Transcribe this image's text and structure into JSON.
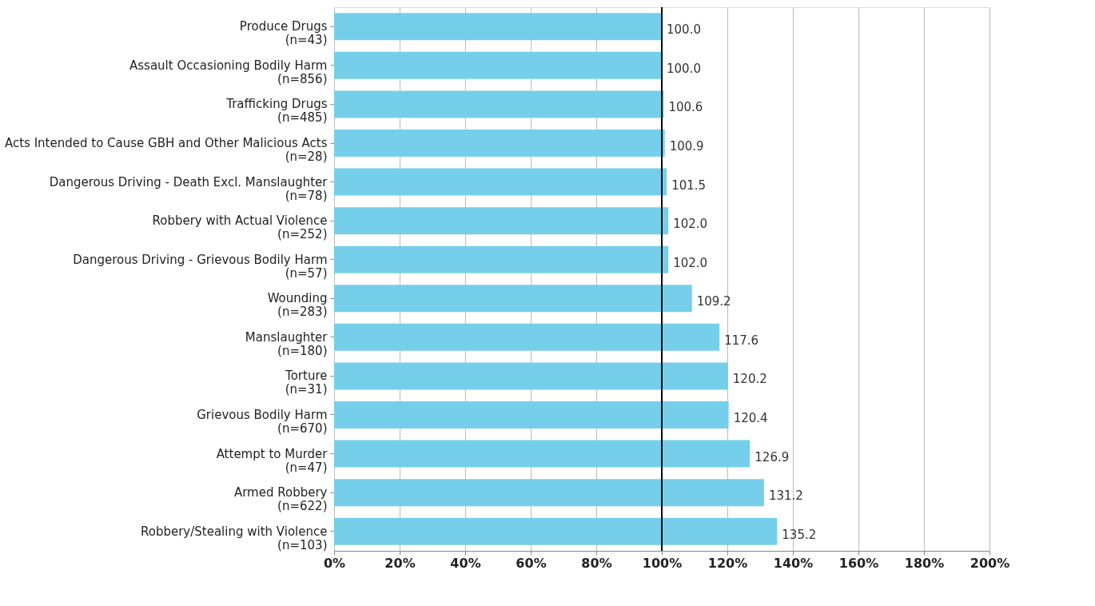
{
  "chart_data": {
    "type": "bar",
    "orientation": "horizontal",
    "categories": [
      "Produce Drugs\n(n=43)",
      "Assault Occasioning Bodily Harm\n(n=856)",
      "Trafficking Drugs\n(n=485)",
      "Acts Intended to Cause GBH and Other Malicious Acts\n(n=28)",
      "Dangerous Driving - Death Excl. Manslaughter\n(n=78)",
      "Robbery with Actual Violence\n(n=252)",
      "Dangerous Driving - Grievous Bodily Harm\n(n=57)",
      "Wounding\n(n=283)",
      "Manslaughter\n(n=180)",
      "Torture\n(n=31)",
      "Grievous Bodily Harm\n(n=670)",
      "Attempt to Murder\n(n=47)",
      "Armed Robbery\n(n=622)",
      "Robbery/Stealing with Violence\n(n=103)"
    ],
    "values": [
      100.0,
      100.0,
      100.6,
      100.9,
      101.5,
      102.0,
      102.0,
      109.2,
      117.6,
      120.2,
      120.4,
      126.9,
      131.2,
      135.2
    ],
    "value_labels": [
      "100.0",
      "100.0",
      "100.6",
      "100.9",
      "101.5",
      "102.0",
      "102.0",
      "109.2",
      "117.6",
      "120.2",
      "120.4",
      "126.9",
      "131.2",
      "135.2"
    ],
    "color": "#76cfea",
    "xlim": [
      0,
      200
    ],
    "xticks": [
      {
        "value": 0,
        "label": "0%"
      },
      {
        "value": 20,
        "label": "20%"
      },
      {
        "value": 40,
        "label": "40%"
      },
      {
        "value": 60,
        "label": "60%"
      },
      {
        "value": 80,
        "label": "80%"
      },
      {
        "value": 100,
        "label": "100%"
      },
      {
        "value": 120,
        "label": "120%"
      },
      {
        "value": 140,
        "label": "140%"
      },
      {
        "value": 160,
        "label": "160%"
      },
      {
        "value": 180,
        "label": "180%"
      },
      {
        "value": 200,
        "label": "200%"
      }
    ],
    "grid": "x",
    "ref_lines": [
      {
        "axis": "x",
        "value": 100,
        "color": "#000000"
      }
    ]
  }
}
